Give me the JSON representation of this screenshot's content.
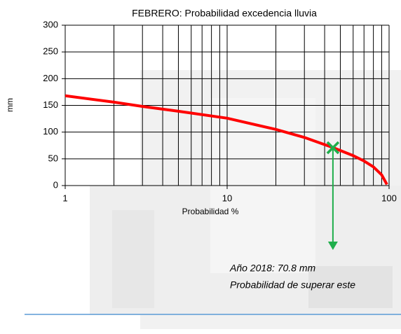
{
  "chart_data": {
    "type": "line",
    "title": "FEBRERO: Probabilidad excedencia lluvia",
    "x_label": "Probabilidad %",
    "y_label": "mm",
    "log_x": true,
    "xlim": [
      1,
      100
    ],
    "xticks": [
      1,
      10,
      100
    ],
    "x_minor_grid": [
      2,
      3,
      4,
      5,
      6,
      7,
      8,
      9,
      20,
      30,
      40,
      50,
      60,
      70,
      80,
      90
    ],
    "ylim": [
      0,
      300
    ],
    "yticks": [
      0,
      50,
      100,
      150,
      200,
      250,
      300
    ],
    "grid": true,
    "series": [
      {
        "color": "#ff0000",
        "x": [
          1,
          2,
          3,
          5,
          10,
          20,
          30,
          45,
          60,
          70,
          80,
          90,
          97
        ],
        "values": [
          168,
          156,
          148,
          139,
          126,
          105,
          90,
          71,
          56,
          46,
          35,
          20,
          2
        ]
      }
    ],
    "marker": {
      "x": 45,
      "y": 70.8,
      "color": "#1fae4b"
    },
    "annotations": [
      "Año 2018: 70.8 mm",
      "Probabilidad de superar este"
    ]
  }
}
